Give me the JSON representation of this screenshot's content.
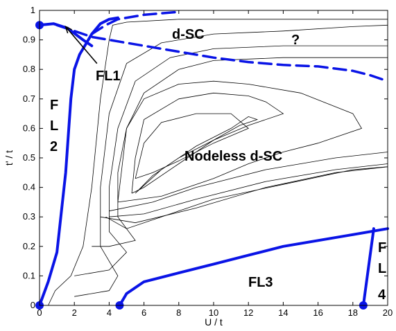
{
  "chart_data": {
    "type": "line",
    "xlabel": "U / t",
    "ylabel": "t' / t",
    "xlim": [
      0,
      20
    ],
    "ylim": [
      0,
      1
    ],
    "xticks": [
      "0",
      "2",
      "4",
      "6",
      "8",
      "10",
      "12",
      "14",
      "16",
      "18",
      "20"
    ],
    "yticks": [
      "0",
      "0.1",
      "0.2",
      "0.3",
      "0.4",
      "0.5",
      "0.6",
      "0.7",
      "0.8",
      "0.9",
      "1"
    ],
    "grid": false,
    "colors": {
      "boundary": "#0a14e6",
      "contour": "#000000",
      "arrow": "#000000"
    },
    "region_labels": {
      "dsc": "d-SC",
      "question": "?",
      "fl1": "FL1",
      "fl2": [
        "F",
        "L",
        "2"
      ],
      "nodeless": "Nodeless d-SC",
      "fl3": "FL3",
      "fl4": [
        "F",
        "L",
        "4"
      ]
    },
    "phase_boundaries": [
      {
        "id": "fl2-left",
        "style": "solid",
        "points": [
          [
            0,
            0
          ],
          [
            0.5,
            0.08
          ],
          [
            1,
            0.18
          ],
          [
            1.5,
            0.45
          ],
          [
            1.8,
            0.7
          ],
          [
            2,
            0.8
          ],
          [
            2.3,
            0.85
          ],
          [
            2.8,
            0.9
          ],
          [
            3,
            0.92
          ],
          [
            3.5,
            0.955
          ],
          [
            4,
            0.97
          ],
          [
            4.5,
            0.975
          ]
        ]
      },
      {
        "id": "top-dashed",
        "style": "dashed",
        "points": [
          [
            3,
            0.92
          ],
          [
            3.8,
            0.95
          ],
          [
            4.5,
            0.97
          ],
          [
            6,
            0.985
          ],
          [
            8,
            0.995
          ]
        ]
      },
      {
        "id": "fl1-curve",
        "style": "solid",
        "points": [
          [
            0,
            0.95
          ],
          [
            0.8,
            0.955
          ],
          [
            1.6,
            0.94
          ],
          [
            2.5,
            0.9
          ],
          [
            3,
            0.88
          ]
        ]
      },
      {
        "id": "middle-dashed",
        "style": "dashed",
        "points": [
          [
            1,
            0.95
          ],
          [
            3,
            0.91
          ],
          [
            5,
            0.89
          ],
          [
            7,
            0.87
          ],
          [
            10,
            0.84
          ],
          [
            12,
            0.825
          ],
          [
            14,
            0.815
          ],
          [
            16,
            0.81
          ],
          [
            18,
            0.795
          ],
          [
            19,
            0.78
          ],
          [
            20,
            0.76
          ]
        ]
      },
      {
        "id": "fl3",
        "style": "solid",
        "points": [
          [
            4.6,
            0
          ],
          [
            5,
            0.04
          ],
          [
            6,
            0.08
          ],
          [
            8,
            0.11
          ],
          [
            10,
            0.14
          ],
          [
            12,
            0.17
          ],
          [
            14,
            0.2
          ],
          [
            16,
            0.22
          ],
          [
            18,
            0.24
          ],
          [
            20,
            0.26
          ]
        ]
      },
      {
        "id": "fl4",
        "style": "solid",
        "points": [
          [
            18.6,
            0
          ],
          [
            19.2,
            0.26
          ]
        ]
      }
    ],
    "phase_points": [
      [
        0,
        0.95
      ],
      [
        0,
        0
      ],
      [
        4.6,
        0
      ],
      [
        18.6,
        0
      ]
    ],
    "arrow": {
      "from": [
        3.3,
        0.82
      ],
      "to": [
        1.5,
        0.945
      ]
    },
    "contours": [
      [
        [
          0.5,
          0
        ],
        [
          0.9,
          0.05
        ],
        [
          1.8,
          0.1
        ],
        [
          2.5,
          0.2
        ],
        [
          3,
          0.4
        ],
        [
          3.5,
          0.7
        ],
        [
          4,
          0.9
        ],
        [
          4.2,
          0.95
        ],
        [
          5,
          0.96
        ],
        [
          8,
          0.97
        ],
        [
          12,
          0.97
        ],
        [
          16,
          0.97
        ],
        [
          20,
          0.97
        ]
      ],
      [
        [
          2,
          0.03
        ],
        [
          4,
          0.05
        ],
        [
          4.5,
          0.1
        ],
        [
          3.5,
          0.2
        ],
        [
          3.5,
          0.4
        ],
        [
          4,
          0.65
        ],
        [
          5,
          0.82
        ],
        [
          7,
          0.89
        ],
        [
          10,
          0.92
        ],
        [
          14,
          0.93
        ],
        [
          18,
          0.945
        ],
        [
          20,
          0.95
        ]
      ],
      [
        [
          2,
          0.1
        ],
        [
          4,
          0.12
        ],
        [
          5,
          0.18
        ],
        [
          4,
          0.25
        ],
        [
          4,
          0.4
        ],
        [
          4.5,
          0.6
        ],
        [
          5.5,
          0.76
        ],
        [
          7.5,
          0.84
        ],
        [
          10,
          0.87
        ],
        [
          14,
          0.88
        ],
        [
          17,
          0.88
        ],
        [
          20,
          0.88
        ]
      ],
      [
        [
          3,
          0.2
        ],
        [
          4,
          0.2
        ],
        [
          5.5,
          0.22
        ],
        [
          4.5,
          0.3
        ],
        [
          4.5,
          0.45
        ],
        [
          5,
          0.6
        ],
        [
          6,
          0.72
        ],
        [
          8,
          0.8
        ],
        [
          10,
          0.83
        ],
        [
          14,
          0.84
        ],
        [
          17,
          0.84
        ],
        [
          20,
          0.84
        ]
      ],
      [
        [
          3.8,
          0.3
        ],
        [
          5,
          0.26
        ],
        [
          7,
          0.3
        ],
        [
          10,
          0.36
        ],
        [
          14,
          0.41
        ],
        [
          18,
          0.46
        ],
        [
          20,
          0.47
        ]
      ],
      [
        [
          3.5,
          0.3
        ],
        [
          5.5,
          0.28
        ],
        [
          9,
          0.33
        ],
        [
          13,
          0.4
        ],
        [
          17,
          0.45
        ],
        [
          20,
          0.47
        ]
      ],
      [
        [
          4,
          0.3
        ],
        [
          6,
          0.31
        ],
        [
          9,
          0.36
        ],
        [
          13,
          0.42
        ],
        [
          17,
          0.46
        ],
        [
          20,
          0.48
        ]
      ],
      [
        [
          4,
          0.32
        ],
        [
          6.5,
          0.35
        ],
        [
          9,
          0.4
        ],
        [
          13,
          0.46
        ],
        [
          17,
          0.5
        ],
        [
          20,
          0.52
        ]
      ],
      [
        [
          4.5,
          0.35
        ],
        [
          5,
          0.6
        ],
        [
          6,
          0.7
        ],
        [
          8,
          0.75
        ],
        [
          10,
          0.76
        ],
        [
          12,
          0.75
        ],
        [
          15,
          0.72
        ],
        [
          18,
          0.65
        ],
        [
          18.5,
          0.6
        ],
        [
          16,
          0.55
        ],
        [
          14,
          0.52
        ],
        [
          12,
          0.48
        ],
        [
          10,
          0.43
        ],
        [
          7,
          0.37
        ],
        [
          4.5,
          0.35
        ]
      ],
      [
        [
          5.3,
          0.38
        ],
        [
          5.5,
          0.5
        ],
        [
          6,
          0.63
        ],
        [
          8,
          0.7
        ],
        [
          10,
          0.72
        ],
        [
          12,
          0.71
        ],
        [
          13,
          0.69
        ],
        [
          14,
          0.65
        ],
        [
          12,
          0.61
        ],
        [
          10,
          0.56
        ],
        [
          8,
          0.48
        ],
        [
          6,
          0.4
        ],
        [
          5.3,
          0.38
        ]
      ],
      [
        [
          5.5,
          0.43
        ],
        [
          6,
          0.55
        ],
        [
          7,
          0.62
        ],
        [
          9,
          0.65
        ],
        [
          11,
          0.65
        ],
        [
          12,
          0.6
        ],
        [
          10,
          0.55
        ],
        [
          8,
          0.49
        ],
        [
          6.5,
          0.45
        ],
        [
          5.5,
          0.43
        ]
      ],
      [
        [
          5.5,
          0.38
        ],
        [
          6.5,
          0.44
        ],
        [
          8,
          0.5
        ],
        [
          10,
          0.56
        ],
        [
          11.5,
          0.61
        ],
        [
          12.5,
          0.63
        ],
        [
          12,
          0.64
        ],
        [
          11,
          0.6
        ],
        [
          9,
          0.54
        ],
        [
          7,
          0.46
        ],
        [
          5.5,
          0.38
        ]
      ]
    ]
  }
}
